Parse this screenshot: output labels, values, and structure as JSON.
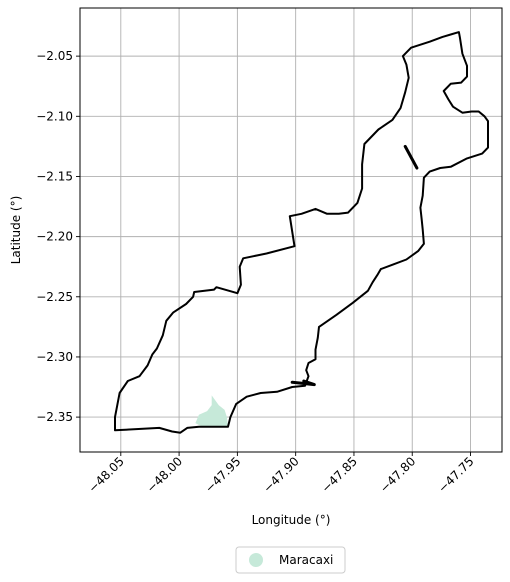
{
  "chart_data": {
    "type": "map",
    "xlabel": "Longitude (°)",
    "ylabel": "Latitude (°)",
    "xlim": [
      -48.085,
      -47.723
    ],
    "ylim": [
      -2.379,
      -2.01
    ],
    "x_ticks": [
      -48.05,
      -48.0,
      -47.95,
      -47.9,
      -47.85,
      -47.8,
      -47.75
    ],
    "x_tick_labels": [
      "−48.05",
      "−48.00",
      "−47.95",
      "−47.90",
      "−47.85",
      "−47.80",
      "−47.75"
    ],
    "y_ticks": [
      -2.05,
      -2.1,
      -2.15,
      -2.2,
      -2.25,
      -2.3,
      -2.35
    ],
    "y_tick_labels": [
      "−2.05",
      "−2.10",
      "−2.15",
      "−2.20",
      "−2.25",
      "−2.30",
      "−2.35"
    ],
    "grid": true,
    "legend_position": "bottom-center",
    "boundary_color": "#000000",
    "boundary": [
      [
        -48.055,
        -2.361
      ],
      [
        -48.017,
        -2.359
      ],
      [
        -48.006,
        -2.362
      ],
      [
        -47.999,
        -2.363
      ],
      [
        -47.993,
        -2.359
      ],
      [
        -47.983,
        -2.358
      ],
      [
        -47.969,
        -2.358
      ],
      [
        -47.958,
        -2.358
      ],
      [
        -47.956,
        -2.35
      ],
      [
        -47.951,
        -2.339
      ],
      [
        -47.942,
        -2.333
      ],
      [
        -47.93,
        -2.33
      ],
      [
        -47.916,
        -2.329
      ],
      [
        -47.903,
        -2.325
      ],
      [
        -47.892,
        -2.324
      ],
      [
        -47.889,
        -2.316
      ],
      [
        -47.891,
        -2.311
      ],
      [
        -47.889,
        -2.305
      ],
      [
        -47.883,
        -2.302
      ],
      [
        -47.883,
        -2.294
      ],
      [
        -47.881,
        -2.284
      ],
      [
        -47.88,
        -2.275
      ],
      [
        -47.865,
        -2.265
      ],
      [
        -47.851,
        -2.255
      ],
      [
        -47.838,
        -2.245
      ],
      [
        -47.834,
        -2.238
      ],
      [
        -47.83,
        -2.232
      ],
      [
        -47.827,
        -2.227
      ],
      [
        -47.816,
        -2.223
      ],
      [
        -47.805,
        -2.219
      ],
      [
        -47.795,
        -2.212
      ],
      [
        -47.79,
        -2.206
      ],
      [
        -47.791,
        -2.194
      ],
      [
        -47.792,
        -2.185
      ],
      [
        -47.793,
        -2.176
      ],
      [
        -47.791,
        -2.166
      ],
      [
        -47.79,
        -2.151
      ],
      [
        -47.785,
        -2.146
      ],
      [
        -47.776,
        -2.143
      ],
      [
        -47.767,
        -2.142
      ],
      [
        -47.753,
        -2.135
      ],
      [
        -47.74,
        -2.131
      ],
      [
        -47.735,
        -2.126
      ],
      [
        -47.735,
        -2.115
      ],
      [
        -47.735,
        -2.104
      ],
      [
        -47.738,
        -2.1
      ],
      [
        -47.743,
        -2.096
      ],
      [
        -47.749,
        -2.096
      ],
      [
        -47.757,
        -2.097
      ],
      [
        -47.765,
        -2.092
      ],
      [
        -47.769,
        -2.086
      ],
      [
        -47.773,
        -2.079
      ],
      [
        -47.767,
        -2.073
      ],
      [
        -47.758,
        -2.072
      ],
      [
        -47.753,
        -2.067
      ],
      [
        -47.753,
        -2.058
      ],
      [
        -47.757,
        -2.048
      ],
      [
        -47.759,
        -2.035
      ],
      [
        -47.76,
        -2.03
      ],
      [
        -47.767,
        -2.032
      ],
      [
        -47.774,
        -2.034
      ],
      [
        -47.785,
        -2.038
      ],
      [
        -47.801,
        -2.043
      ],
      [
        -47.808,
        -2.05
      ],
      [
        -47.805,
        -2.057
      ],
      [
        -47.803,
        -2.068
      ],
      [
        -47.806,
        -2.08
      ],
      [
        -47.81,
        -2.093
      ],
      [
        -47.817,
        -2.103
      ],
      [
        -47.829,
        -2.111
      ],
      [
        -47.841,
        -2.123
      ],
      [
        -47.843,
        -2.14
      ],
      [
        -47.843,
        -2.16
      ],
      [
        -47.847,
        -2.172
      ],
      [
        -47.855,
        -2.18
      ],
      [
        -47.863,
        -2.181
      ],
      [
        -47.873,
        -2.181
      ],
      [
        -47.883,
        -2.177
      ],
      [
        -47.895,
        -2.181
      ],
      [
        -47.905,
        -2.183
      ],
      [
        -47.901,
        -2.208
      ],
      [
        -47.925,
        -2.214
      ],
      [
        -47.945,
        -2.218
      ],
      [
        -47.948,
        -2.225
      ],
      [
        -47.947,
        -2.24
      ],
      [
        -47.95,
        -2.247
      ],
      [
        -47.968,
        -2.242
      ],
      [
        -47.97,
        -2.244
      ],
      [
        -47.987,
        -2.246
      ],
      [
        -47.988,
        -2.25
      ],
      [
        -47.994,
        -2.256
      ],
      [
        -48.005,
        -2.263
      ],
      [
        -48.011,
        -2.27
      ],
      [
        -48.014,
        -2.282
      ],
      [
        -48.019,
        -2.293
      ],
      [
        -48.023,
        -2.298
      ],
      [
        -48.027,
        -2.307
      ],
      [
        -48.034,
        -2.316
      ],
      [
        -48.044,
        -2.32
      ],
      [
        -48.051,
        -2.33
      ],
      [
        -48.053,
        -2.34
      ],
      [
        -48.055,
        -2.35
      ],
      [
        -48.055,
        -2.361
      ]
    ],
    "inner_segments": [
      [
        [
          -47.903,
          -2.321
        ],
        [
          -47.884,
          -2.323
        ],
        [
          -47.893,
          -2.32
        ]
      ],
      [
        [
          -47.806,
          -2.125
        ],
        [
          -47.796,
          -2.143
        ]
      ]
    ],
    "series": [
      {
        "name": "Maracaxi",
        "color": "#c6e9d9",
        "polygon": [
          [
            -47.972,
            -2.332
          ],
          [
            -47.966,
            -2.34
          ],
          [
            -47.961,
            -2.344
          ],
          [
            -47.959,
            -2.35
          ],
          [
            -47.958,
            -2.358
          ],
          [
            -47.98,
            -2.358
          ],
          [
            -47.986,
            -2.355
          ],
          [
            -47.983,
            -2.348
          ],
          [
            -47.976,
            -2.345
          ],
          [
            -47.972,
            -2.34
          ]
        ]
      }
    ]
  }
}
